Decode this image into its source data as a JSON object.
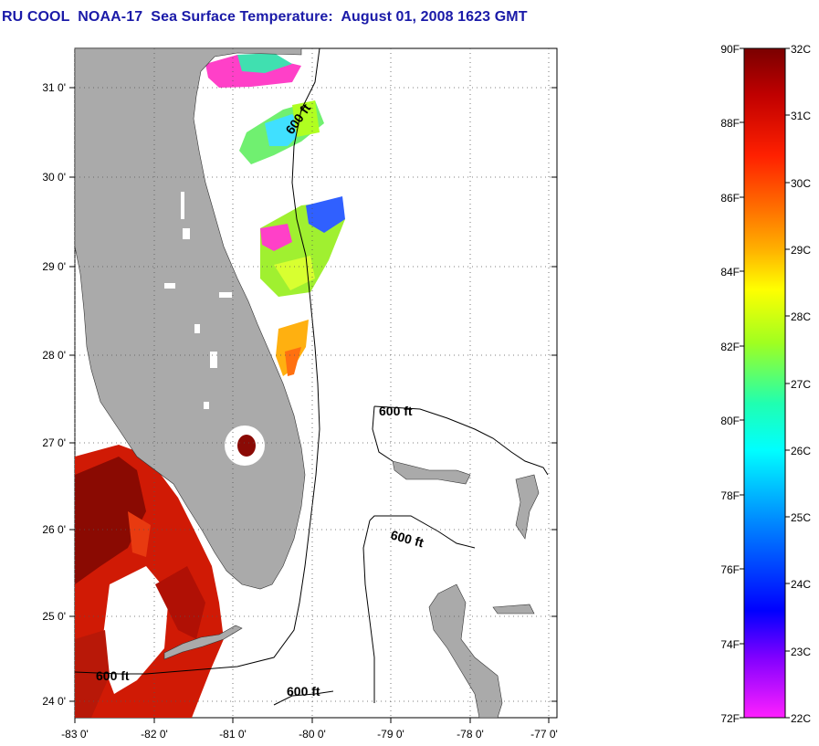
{
  "title": "RU COOL  NOAA-17  Sea Surface Temperature:  August 01, 2008 1623 GMT",
  "map": {
    "lat_labels": [
      "31 0'",
      "30 0'",
      "29 0'",
      "28 0'",
      "27 0'",
      "26 0'",
      "25 0'",
      "24 0'"
    ],
    "lon_labels": [
      "-83 0'",
      "-82 0'",
      "-81 0'",
      "-80 0'",
      "-79 0'",
      "-78 0'",
      "-77 0'"
    ],
    "contour_labels": [
      "600 ft",
      "600 ft",
      "600 ft",
      "600 ft",
      "600 ft"
    ],
    "colors": {
      "land": "#aaaaaa",
      "water": "#ffffff",
      "grid": "#555555"
    }
  },
  "colorbar": {
    "fahrenheit_labels": [
      "90F",
      "88F",
      "86F",
      "84F",
      "82F",
      "80F",
      "78F",
      "76F",
      "74F",
      "72F"
    ],
    "celsius_labels": [
      "32C",
      "31C",
      "30C",
      "29C",
      "28C",
      "27C",
      "26C",
      "25C",
      "24C",
      "23C",
      "22C"
    ],
    "gradient": [
      "#7a0000",
      "#c00000",
      "#ff2000",
      "#ff7000",
      "#ffb000",
      "#ffff00",
      "#a0ff20",
      "#20ffb0",
      "#00ffff",
      "#0090ff",
      "#0000ff",
      "#8000ff",
      "#ff20ff"
    ]
  }
}
